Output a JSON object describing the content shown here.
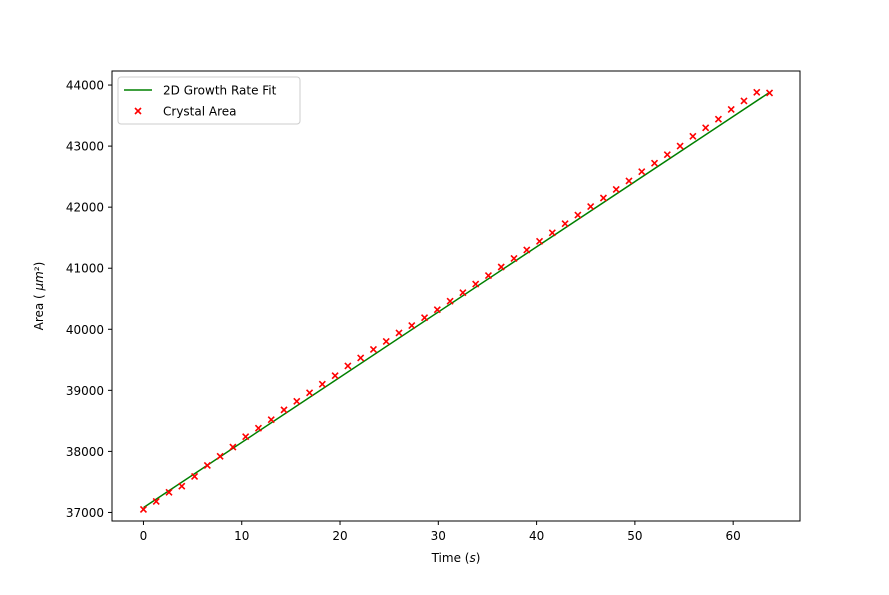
{
  "chart_data": {
    "type": "scatter",
    "xlabel": "Time (s)",
    "ylabel": "Area ( μm²)",
    "xlim": [
      -3.2,
      66.8
    ],
    "ylim": [
      36860,
      44230
    ],
    "xticks": [
      0,
      10,
      20,
      30,
      40,
      50,
      60
    ],
    "yticks": [
      37000,
      38000,
      39000,
      40000,
      41000,
      42000,
      43000,
      44000
    ],
    "grid": false,
    "legend_position": "top-left",
    "colors": {
      "fit": "#008000",
      "points": "#ff0000"
    },
    "series": [
      {
        "name": "2D Growth Rate Fit",
        "kind": "line",
        "x": [
          0,
          63.7
        ],
        "y": [
          37080,
          43880
        ]
      },
      {
        "name": "Crystal Area",
        "kind": "scatter",
        "marker": "x",
        "x": [
          0,
          1.3,
          2.6,
          3.9,
          5.2,
          6.5,
          7.8,
          9.1,
          10.4,
          11.7,
          13.0,
          14.3,
          15.6,
          16.9,
          18.2,
          19.5,
          20.8,
          22.1,
          23.4,
          24.7,
          26.0,
          27.3,
          28.6,
          29.9,
          31.2,
          32.5,
          33.8,
          35.1,
          36.4,
          37.7,
          39.0,
          40.3,
          41.6,
          42.9,
          44.2,
          45.5,
          46.8,
          48.1,
          49.4,
          50.7,
          52.0,
          53.3,
          54.6,
          55.9,
          57.2,
          58.5,
          59.8,
          61.1,
          62.4,
          63.7
        ],
        "y": [
          37050,
          37180,
          37330,
          37430,
          37590,
          37770,
          37920,
          38070,
          38240,
          38380,
          38520,
          38680,
          38820,
          38960,
          39100,
          39240,
          39400,
          39530,
          39670,
          39800,
          39940,
          40060,
          40190,
          40320,
          40460,
          40600,
          40740,
          40880,
          41020,
          41160,
          41300,
          41440,
          41580,
          41730,
          41870,
          42010,
          42150,
          42290,
          42430,
          42580,
          42720,
          42860,
          43000,
          43160,
          43300,
          43440,
          43600,
          43740,
          43880,
          43870
        ]
      }
    ]
  }
}
